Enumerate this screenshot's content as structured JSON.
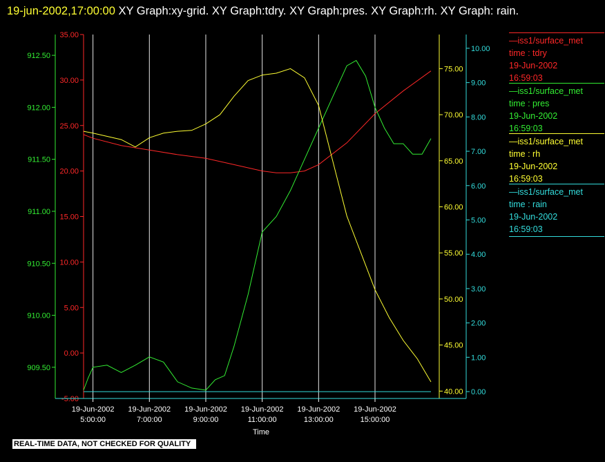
{
  "title": {
    "timestamp": "19-jun-2002,17:00:00",
    "text": "XY Graph:xy-grid.  XY Graph:tdry.  XY Graph:pres.  XY Graph:rh.  XY Graph: rain."
  },
  "legend": [
    {
      "source": "—iss1/surface_met",
      "var": "time : tdry",
      "date": "19-Jun-2002",
      "time": "16:59:03",
      "color": "#ff2828"
    },
    {
      "source": "—iss1/surface_met",
      "var": "time : pres",
      "date": "19-Jun-2002",
      "time": "16:59:03",
      "color": "#33ee33"
    },
    {
      "source": "—iss1/surface_met",
      "var": "time : rh",
      "date": "19-Jun-2002",
      "time": "16:59:03",
      "color": "#ffff33"
    },
    {
      "source": "—iss1/surface_met",
      "var": "time : rain",
      "date": "19-Jun-2002",
      "time": "16:59:03",
      "color": "#33dddd"
    }
  ],
  "qc_banner": "REAL-TIME DATA, NOT CHECKED FOR QUALITY",
  "chart_data": {
    "type": "line",
    "xlabel": "Time",
    "x_range": [
      "19-Jun-2002 04:40",
      "19-Jun-2002 16:59"
    ],
    "x_ticks": [
      {
        "time": "05:00",
        "date_label": "19-Jun-2002",
        "time_label": "5:00:00"
      },
      {
        "time": "07:00",
        "date_label": "19-Jun-2002",
        "time_label": "7:00:00"
      },
      {
        "time": "09:00",
        "date_label": "19-Jun-2002",
        "time_label": "9:00:00"
      },
      {
        "time": "11:00",
        "date_label": "19-Jun-2002",
        "time_label": "11:00:00"
      },
      {
        "time": "13:00",
        "date_label": "19-Jun-2002",
        "time_label": "13:00:00"
      },
      {
        "time": "15:00",
        "date_label": "19-Jun-2002",
        "time_label": "15:00:00"
      }
    ],
    "grid": "vertical lines at x ticks",
    "axes": [
      {
        "id": "pres",
        "side": "left-outer",
        "color": "#33ee33",
        "range": [
          909.2,
          912.7
        ],
        "ticks": [
          "909.50",
          "910.00",
          "910.50",
          "911.00",
          "911.50",
          "912.00",
          "912.50"
        ]
      },
      {
        "id": "tdry",
        "side": "left-inner",
        "color": "#ff2828",
        "range": [
          -5,
          35
        ],
        "ticks": [
          "-5.00",
          "0.00",
          "5.00",
          "10.00",
          "15.00",
          "20.00",
          "25.00",
          "30.00",
          "35.00"
        ]
      },
      {
        "id": "rh",
        "side": "right-inner",
        "color": "#ffff33",
        "range": [
          39.2,
          78.7
        ],
        "ticks": [
          "40.00",
          "45.00",
          "50.00",
          "55.00",
          "60.00",
          "65.00",
          "70.00",
          "75.00"
        ]
      },
      {
        "id": "rain",
        "side": "right-outer",
        "color": "#33dddd",
        "range": [
          -0.2,
          10.4
        ],
        "ticks": [
          "0.00",
          "1.00",
          "2.00",
          "3.00",
          "4.00",
          "5.00",
          "6.00",
          "7.00",
          "8.00",
          "9.00",
          "10.00"
        ]
      }
    ],
    "series": [
      {
        "axis": "tdry",
        "color": "#ff2828",
        "x": [
          "04:40",
          "05:00",
          "06:00",
          "07:00",
          "08:00",
          "09:00",
          "10:00",
          "11:00",
          "11:30",
          "12:00",
          "12:30",
          "13:00",
          "14:00",
          "15:00",
          "16:00",
          "16:59"
        ],
        "y": [
          24.0,
          23.6,
          22.8,
          22.3,
          21.8,
          21.4,
          20.7,
          20.0,
          19.8,
          19.8,
          20.0,
          20.7,
          23.1,
          26.3,
          28.8,
          31.0
        ]
      },
      {
        "axis": "pres",
        "color": "#33ee33",
        "x": [
          "04:40",
          "04:50",
          "05:00",
          "05:30",
          "06:00",
          "06:30",
          "07:00",
          "07:30",
          "08:00",
          "08:30",
          "09:00",
          "09:20",
          "09:40",
          "10:00",
          "10:30",
          "11:00",
          "11:30",
          "12:00",
          "12:30",
          "13:00",
          "13:30",
          "14:00",
          "14:20",
          "14:40",
          "15:00",
          "15:20",
          "15:40",
          "16:00",
          "16:20",
          "16:40",
          "16:59"
        ],
        "y": [
          909.28,
          909.4,
          909.5,
          909.52,
          909.45,
          909.52,
          909.6,
          909.55,
          909.36,
          909.3,
          909.28,
          909.38,
          909.42,
          909.7,
          910.2,
          910.8,
          910.95,
          911.2,
          911.5,
          911.8,
          912.1,
          912.4,
          912.45,
          912.3,
          912.0,
          911.8,
          911.65,
          911.65,
          911.55,
          911.55,
          911.7
        ]
      },
      {
        "axis": "rh",
        "color": "#ffff33",
        "x": [
          "04:40",
          "05:00",
          "06:00",
          "06:30",
          "07:00",
          "07:30",
          "08:00",
          "08:30",
          "09:00",
          "09:30",
          "10:00",
          "10:30",
          "11:00",
          "11:30",
          "12:00",
          "12:30",
          "13:00",
          "13:30",
          "14:00",
          "14:30",
          "15:00",
          "15:30",
          "16:00",
          "16:30",
          "16:59"
        ],
        "y": [
          68.2,
          68.0,
          67.3,
          66.5,
          67.5,
          68.0,
          68.2,
          68.3,
          69.0,
          70.0,
          72.0,
          73.7,
          74.3,
          74.5,
          75.0,
          74.0,
          71.0,
          65.0,
          59.0,
          55.0,
          51.0,
          48.0,
          45.5,
          43.5,
          41.0
        ]
      },
      {
        "axis": "rain",
        "color": "#33dddd",
        "x": [
          "04:40",
          "16:59"
        ],
        "y": [
          0.0,
          0.0
        ]
      }
    ]
  }
}
